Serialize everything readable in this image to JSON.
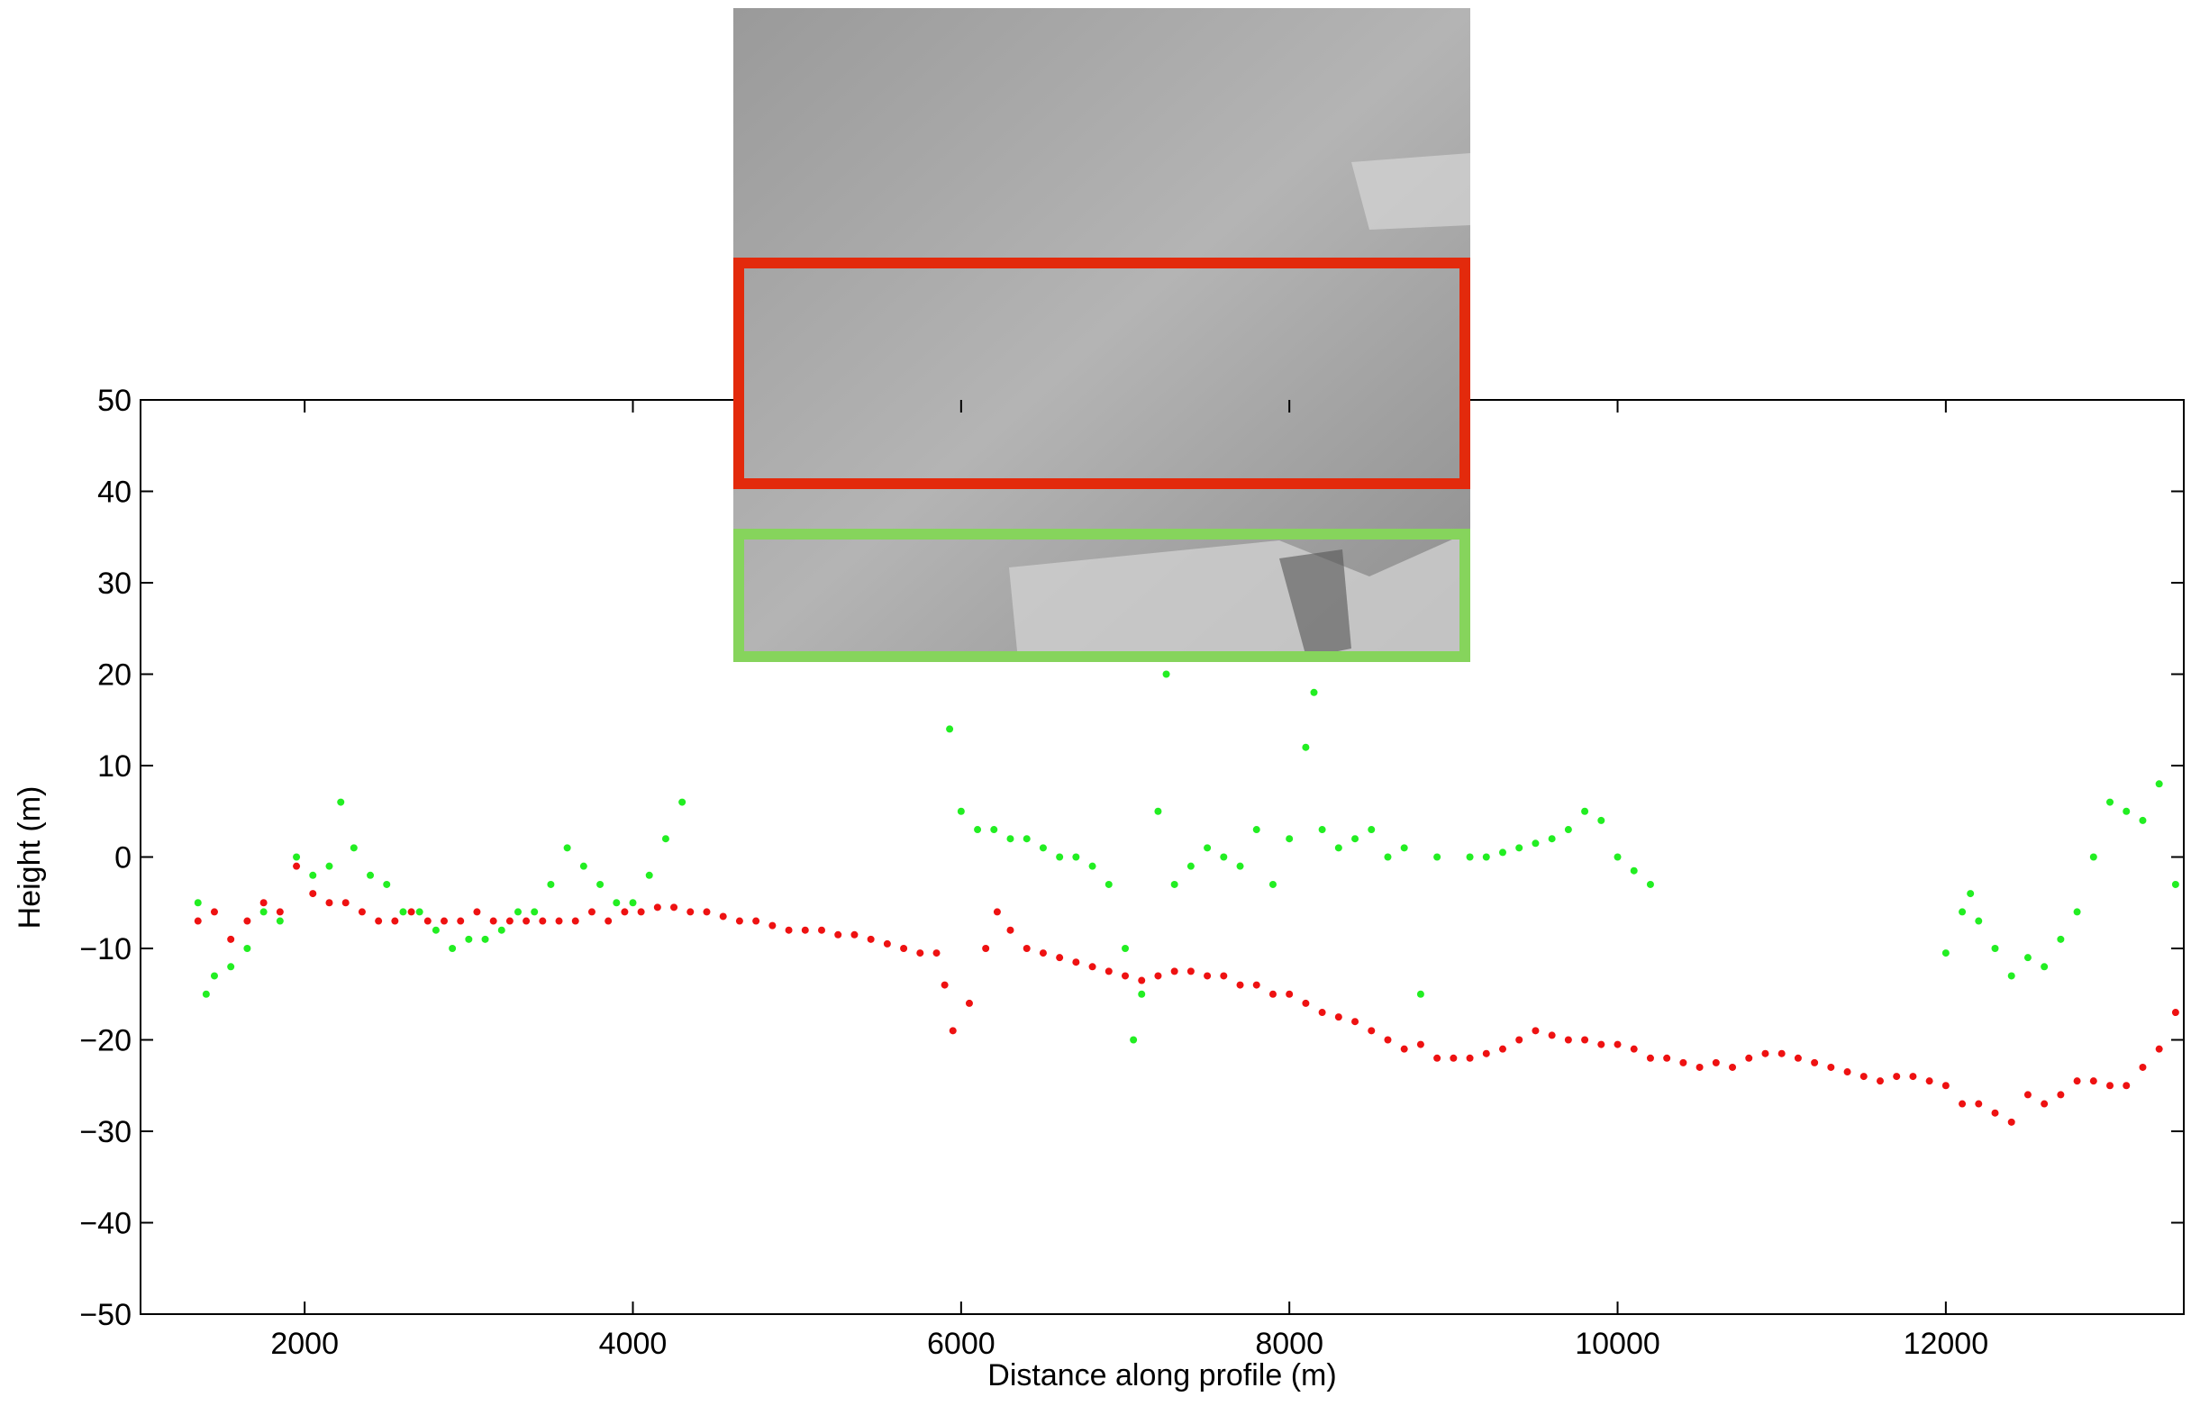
{
  "chart_data": {
    "type": "scatter",
    "xlabel": "Distance along profile (m)",
    "ylabel": "Height (m)",
    "xlim": [
      1000,
      13450
    ],
    "ylim": [
      -50,
      50
    ],
    "xticks": [
      2000,
      4000,
      6000,
      8000,
      10000,
      12000
    ],
    "yticks": [
      {
        "value": -50,
        "label": "−50"
      },
      {
        "value": -40,
        "label": "−40"
      },
      {
        "value": -30,
        "label": "−30"
      },
      {
        "value": -20,
        "label": "−20"
      },
      {
        "value": -10,
        "label": "−10"
      },
      0,
      10,
      20,
      30,
      40,
      50
    ],
    "grid": false,
    "series": [
      {
        "color": "#ee1111",
        "x": [
          1350,
          1450,
          1550,
          1650,
          1750,
          1850,
          1950,
          2050,
          2150,
          2250,
          2350,
          2450,
          2550,
          2650,
          2750,
          2850,
          2950,
          3050,
          3150,
          3250,
          3350,
          3450,
          3550,
          3650,
          3750,
          3850,
          3950,
          4050,
          4150,
          4250,
          4350,
          4450,
          4550,
          4650,
          4750,
          4850,
          4950,
          5050,
          5150,
          5250,
          5350,
          5450,
          5550,
          5650,
          5750,
          5850,
          5900,
          5950,
          6050,
          6150,
          6220,
          6300,
          6400,
          6500,
          6600,
          6700,
          6800,
          6900,
          7000,
          7100,
          7200,
          7300,
          7400,
          7500,
          7600,
          7700,
          7800,
          7900,
          8000,
          8100,
          8200,
          8300,
          8400,
          8500,
          8600,
          8700,
          8800,
          8900,
          9000,
          9100,
          9200,
          9300,
          9400,
          9500,
          9600,
          9700,
          9800,
          9900,
          10000,
          10100,
          10200,
          10300,
          10400,
          10500,
          10600,
          10700,
          10800,
          10900,
          11000,
          11100,
          11200,
          11300,
          11400,
          11500,
          11600,
          11700,
          11800,
          11900,
          12000,
          12100,
          12200,
          12300,
          12400,
          12500,
          12600,
          12700,
          12800,
          12900,
          13000,
          13100,
          13200,
          13300,
          13400
        ],
        "values": [
          -7,
          -6,
          -9,
          -7,
          -5,
          -6,
          -1,
          -4,
          -5,
          -5,
          -6,
          -7,
          -7,
          -6,
          -7,
          -7,
          -7,
          -6,
          -7,
          -7,
          -7,
          -7,
          -7,
          -7,
          -6,
          -7,
          -6,
          -6,
          -5.5,
          -5.5,
          -6,
          -6,
          -6.5,
          -7,
          -7,
          -7.5,
          -8,
          -8,
          -8,
          -8.5,
          -8.5,
          -9,
          -9.5,
          -10,
          -10.5,
          -10.5,
          -14,
          -19,
          -16,
          -10,
          -6,
          -8,
          -10,
          -10.5,
          -11,
          -11.5,
          -12,
          -12.5,
          -13,
          -13.5,
          -13,
          -12.5,
          -12.5,
          -13,
          -13,
          -14,
          -14,
          -15,
          -15,
          -16,
          -17,
          -17.5,
          -18,
          -19,
          -20,
          -21,
          -20.5,
          -22,
          -22,
          -22,
          -21.5,
          -21,
          -20,
          -19,
          -19.5,
          -20,
          -20,
          -20.5,
          -20.5,
          -21,
          -22,
          -22,
          -22.5,
          -23,
          -22.5,
          -23,
          -22,
          -21.5,
          -21.5,
          -22,
          -22.5,
          -23,
          -23.5,
          -24,
          -24.5,
          -24,
          -24,
          -24.5,
          -25,
          -27,
          -27,
          -28,
          -29,
          -26,
          -27,
          -26,
          -24.5,
          -24.5,
          -25,
          -25,
          -23,
          -21,
          -17
        ]
      },
      {
        "color": "#22ee22",
        "x": [
          1350,
          1400,
          1450,
          1550,
          1650,
          1750,
          1850,
          1950,
          2050,
          2150,
          2220,
          2300,
          2400,
          2500,
          2600,
          2700,
          2800,
          2900,
          3000,
          3100,
          3200,
          3300,
          3400,
          3500,
          3600,
          3700,
          3800,
          3900,
          4000,
          4100,
          4200,
          4300,
          5930,
          6000,
          6100,
          6200,
          6300,
          6400,
          6500,
          6600,
          6700,
          6800,
          6900,
          7000,
          7050,
          7100,
          7200,
          7250,
          7300,
          7400,
          7500,
          7600,
          7700,
          7800,
          7900,
          8000,
          8100,
          8150,
          8200,
          8300,
          8400,
          8500,
          8600,
          8700,
          8800,
          8900,
          9100,
          9200,
          9300,
          9400,
          9500,
          9600,
          9700,
          9800,
          9900,
          10000,
          10100,
          10200,
          12000,
          12100,
          12150,
          12200,
          12300,
          12400,
          12500,
          12600,
          12700,
          12800,
          12900,
          13000,
          13100,
          13200,
          13300,
          13400
        ],
        "values": [
          -5,
          -15,
          -13,
          -12,
          -10,
          -6,
          -7,
          0,
          -2,
          -1,
          6,
          1,
          -2,
          -3,
          -6,
          -6,
          -8,
          -10,
          -9,
          -9,
          -8,
          -6,
          -6,
          -3,
          1,
          -1,
          -3,
          -5,
          -5,
          -2,
          2,
          6,
          14,
          5,
          3,
          3,
          2,
          2,
          1,
          0,
          0,
          -1,
          -3,
          -10,
          -20,
          -15,
          5,
          20,
          -3,
          -1,
          1,
          0,
          -1,
          3,
          -3,
          2,
          12,
          18,
          3,
          1,
          2,
          3,
          0,
          1,
          -15,
          0,
          0,
          0,
          0.5,
          1,
          1.5,
          2,
          3,
          5,
          4,
          0,
          -1.5,
          -3,
          -10.5,
          -6,
          -4,
          -7,
          -10,
          -13,
          -11,
          -12,
          -9,
          -6,
          0,
          6,
          5,
          4,
          8,
          -3
        ]
      }
    ]
  }
}
